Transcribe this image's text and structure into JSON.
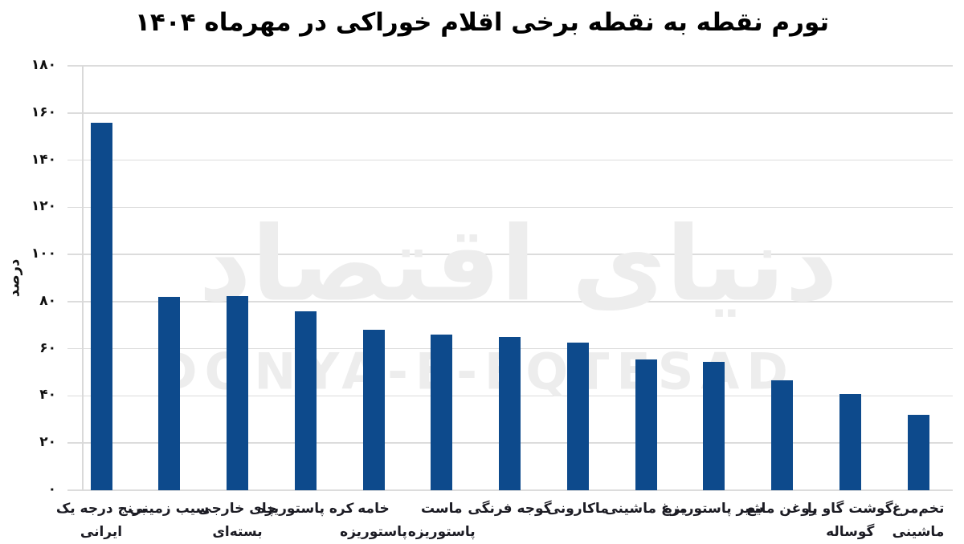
{
  "title": "تورم نقطه به نقطه برخی اقلام خوراکی در مهرماه ۱۴۰۴",
  "watermark": {
    "fa_logo_text": "دنیای اقتصاد",
    "en_text": "DONYA-E-EQTESAD"
  },
  "chart_data": {
    "type": "bar",
    "title": "تورم نقطه به نقطه برخی اقلام خوراکی در مهرماه ۱۴۰۴",
    "ylabel": "درصد",
    "xlabel": "",
    "ylim": [
      0,
      180
    ],
    "grid": true,
    "legend": false,
    "bar_color": "#0d4a8c",
    "gridline_color": "#dcdcdc",
    "yticks": [
      {
        "value": 180,
        "label": "۱۸۰"
      },
      {
        "value": 160,
        "label": "۱۶۰"
      },
      {
        "value": 140,
        "label": "۱۴۰"
      },
      {
        "value": 120,
        "label": "۱۲۰"
      },
      {
        "value": 100,
        "label": "۱۰۰"
      },
      {
        "value": 80,
        "label": "۸۰"
      },
      {
        "value": 60,
        "label": "۶۰"
      },
      {
        "value": 40,
        "label": "۴۰"
      },
      {
        "value": 20,
        "label": "۲۰"
      },
      {
        "value": 0,
        "label": "۰"
      }
    ],
    "categories": [
      {
        "label": "برنج درجه یک ایرانی",
        "lines": [
          "برنج درجه یک",
          "ایرانی"
        ],
        "value": 155.8
      },
      {
        "label": "سیب زمینی",
        "lines": [
          "سیب زمینی"
        ],
        "value": 82
      },
      {
        "label": "چای خارجی بسته‌ای",
        "lines": [
          "چای خارجی",
          "بسته‌ای"
        ],
        "value": 82.5
      },
      {
        "label": "کره پاستوریزه",
        "lines": [
          "کره پاستوریزه"
        ],
        "value": 76
      },
      {
        "label": "خامه پاستوریزه",
        "lines": [
          "خامه",
          "پاستوریزه"
        ],
        "value": 68
      },
      {
        "label": "ماست پاستوریزه",
        "lines": [
          "ماست",
          "پاستوریزه"
        ],
        "value": 66
      },
      {
        "label": "گوجه فرنگی",
        "lines": [
          "گوجه فرنگی"
        ],
        "value": 65
      },
      {
        "label": "ماکارونی",
        "lines": [
          "ماکارونی"
        ],
        "value": 62.5
      },
      {
        "label": "مرغ ماشینی",
        "lines": [
          "مرغ ماشینی"
        ],
        "value": 55.5
      },
      {
        "label": "شیر پاستوریزه",
        "lines": [
          "شیر پاستوریزه"
        ],
        "value": 54.5
      },
      {
        "label": "روغن مایع",
        "lines": [
          "روغن مایع"
        ],
        "value": 46.5
      },
      {
        "label": "گوشت گاو یا گوساله",
        "lines": [
          "گوشت گاو یا",
          "گوساله"
        ],
        "value": 41
      },
      {
        "label": "تخم‌مرغ ماشینی",
        "lines": [
          "تخم‌مرغ",
          "ماشینی"
        ],
        "value": 32
      }
    ]
  }
}
